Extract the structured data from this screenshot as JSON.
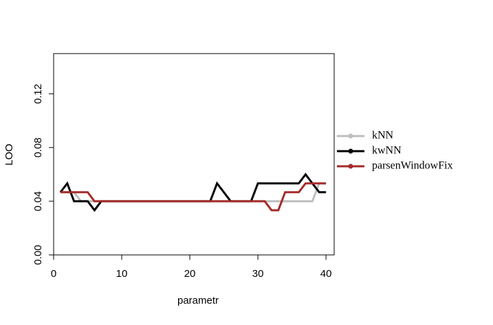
{
  "chart_data": {
    "type": "line",
    "x": [
      1,
      2,
      3,
      4,
      5,
      6,
      7,
      8,
      9,
      10,
      11,
      12,
      13,
      14,
      15,
      16,
      17,
      18,
      19,
      20,
      21,
      22,
      23,
      24,
      25,
      26,
      27,
      28,
      29,
      30,
      31,
      32,
      33,
      34,
      35,
      36,
      37,
      38,
      39,
      40
    ],
    "series": [
      {
        "name": "kNN",
        "color": "#bebebe",
        "values": [
          0.0467,
          0.0467,
          0.0467,
          0.04,
          0.04,
          0.04,
          0.04,
          0.04,
          0.04,
          0.04,
          0.04,
          0.04,
          0.04,
          0.04,
          0.04,
          0.04,
          0.04,
          0.04,
          0.04,
          0.04,
          0.04,
          0.04,
          0.04,
          0.04,
          0.04,
          0.04,
          0.04,
          0.04,
          0.04,
          0.04,
          0.04,
          0.04,
          0.04,
          0.04,
          0.04,
          0.04,
          0.04,
          0.04,
          0.0533,
          0.0533
        ]
      },
      {
        "name": "kwNN",
        "color": "#000000",
        "values": [
          0.0467,
          0.0533,
          0.04,
          0.04,
          0.04,
          0.0333,
          0.04,
          0.04,
          0.04,
          0.04,
          0.04,
          0.04,
          0.04,
          0.04,
          0.04,
          0.04,
          0.04,
          0.04,
          0.04,
          0.04,
          0.04,
          0.04,
          0.04,
          0.0533,
          0.0467,
          0.04,
          0.04,
          0.04,
          0.04,
          0.0533,
          0.0533,
          0.0533,
          0.0533,
          0.0533,
          0.0533,
          0.0533,
          0.06,
          0.0533,
          0.0467,
          0.0467
        ]
      },
      {
        "name": "parsenWindowFix",
        "color": "#a52a2a",
        "values": [
          0.0467,
          0.0467,
          0.0467,
          0.0467,
          0.0467,
          0.04,
          0.04,
          0.04,
          0.04,
          0.04,
          0.04,
          0.04,
          0.04,
          0.04,
          0.04,
          0.04,
          0.04,
          0.04,
          0.04,
          0.04,
          0.04,
          0.04,
          0.04,
          0.04,
          0.04,
          0.04,
          0.04,
          0.04,
          0.04,
          0.04,
          0.04,
          0.0333,
          0.0333,
          0.0467,
          0.0467,
          0.0467,
          0.0533,
          0.0533,
          0.0533,
          0.0533
        ]
      }
    ],
    "x_label": "parametr",
    "y_label": "LOO",
    "xlim": [
      0,
      41.2
    ],
    "xticks": [
      0,
      10,
      20,
      30,
      40
    ],
    "ylim": [
      0,
      0.15
    ],
    "yticks": [
      {
        "value": 0,
        "label": "0.00"
      },
      {
        "value": 0.04,
        "label": "0.04"
      },
      {
        "value": 0.08,
        "label": "0.08"
      },
      {
        "value": 0.12,
        "label": "0.12"
      }
    ],
    "legend": "right"
  }
}
